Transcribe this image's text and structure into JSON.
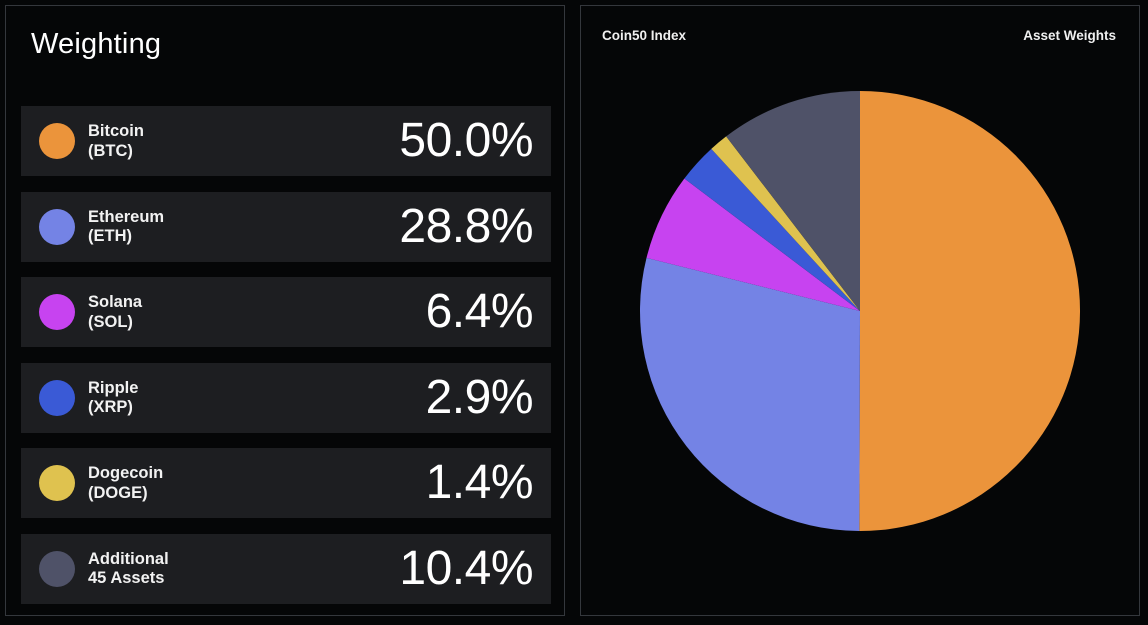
{
  "left": {
    "title": "Weighting",
    "rows": [
      {
        "line1": "Bitcoin",
        "line2": "(BTC)",
        "value": "50.0%",
        "color": "#eb943b"
      },
      {
        "line1": "Ethereum",
        "line2": "(ETH)",
        "value": "28.8%",
        "color": "#7483e5"
      },
      {
        "line1": "Solana",
        "line2": "(SOL)",
        "value": "6.4%",
        "color": "#c743f0"
      },
      {
        "line1": "Ripple",
        "line2": "(XRP)",
        "value": "2.9%",
        "color": "#3a5ad6"
      },
      {
        "line1": "Dogecoin",
        "line2": "(DOGE)",
        "value": "1.4%",
        "color": "#dfc24f"
      },
      {
        "line1": "Additional",
        "line2": "45 Assets",
        "value": "10.4%",
        "color": "#4f5268"
      }
    ]
  },
  "chart_data": {
    "type": "pie",
    "title": "Coin50 Index",
    "subtitle": "Asset Weights",
    "labels": [
      "Bitcoin (BTC)",
      "Ethereum (ETH)",
      "Solana (SOL)",
      "Ripple (XRP)",
      "Dogecoin (DOGE)",
      "Additional 45 Assets"
    ],
    "values": [
      50.0,
      28.8,
      6.4,
      2.9,
      1.4,
      10.4
    ],
    "colors": [
      "#eb943b",
      "#7483e5",
      "#c743f0",
      "#3a5ad6",
      "#dfc24f",
      "#4f5268"
    ],
    "start": "12 o'clock",
    "direction": "clockwise"
  }
}
